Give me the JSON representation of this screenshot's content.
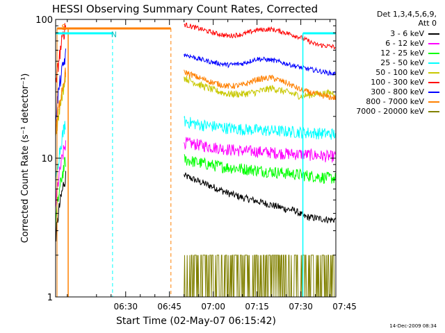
{
  "chart_data": {
    "type": "line",
    "title": "HESSI Observing Summary Count Rates, Corrected",
    "xlabel": "Start Time (02-May-07 06:15:42)",
    "ylabel": "Corrected Count Rate (s⁻¹ detector⁻¹)",
    "yscale": "log",
    "ylim": [
      1,
      100
    ],
    "xlim_minutes": [
      6.0,
      102.0
    ],
    "x_ticks": [
      {
        "m": 30,
        "label": "06:30"
      },
      {
        "m": 45,
        "label": "06:45"
      },
      {
        "m": 60,
        "label": "07:00"
      },
      {
        "m": 75,
        "label": "07:15"
      },
      {
        "m": 90,
        "label": "07:30"
      },
      {
        "m": 105,
        "label": "07:45"
      }
    ],
    "y_ticks": [
      {
        "v": 1,
        "label": "1"
      },
      {
        "v": 10,
        "label": "10"
      },
      {
        "v": 100,
        "label": "100"
      }
    ],
    "legend_header": [
      "Det 1,3,4,5,6,9,",
      "Att 0"
    ],
    "series": [
      {
        "name": "3 - 6 keV",
        "color": "#000000",
        "points": [
          [
            50,
            7.5
          ],
          [
            55,
            6.8
          ],
          [
            60,
            6.2
          ],
          [
            65,
            5.6
          ],
          [
            70,
            5.2
          ],
          [
            75,
            4.9
          ],
          [
            80,
            4.6
          ],
          [
            85,
            4.3
          ],
          [
            88,
            4.2
          ],
          [
            91,
            3.8
          ],
          [
            95,
            3.7
          ],
          [
            100,
            3.6
          ],
          [
            103,
            3.6
          ]
        ]
      },
      {
        "name": "6 - 12 keV",
        "color": "#ff00ff",
        "points": [
          [
            50,
            13
          ],
          [
            55,
            12.5
          ],
          [
            60,
            12
          ],
          [
            65,
            11.6
          ],
          [
            70,
            11.3
          ],
          [
            75,
            11.2
          ],
          [
            80,
            11.0
          ],
          [
            85,
            10.8
          ],
          [
            90,
            10.7
          ],
          [
            95,
            10.5
          ],
          [
            100,
            10.3
          ],
          [
            103,
            10.3
          ]
        ]
      },
      {
        "name": "12 - 25 keV",
        "color": "#00ff00",
        "points": [
          [
            50,
            9.8
          ],
          [
            55,
            9.3
          ],
          [
            60,
            8.9
          ],
          [
            65,
            8.6
          ],
          [
            70,
            8.4
          ],
          [
            75,
            8.2
          ],
          [
            80,
            8.0
          ],
          [
            85,
            7.8
          ],
          [
            90,
            7.6
          ],
          [
            95,
            7.4
          ],
          [
            100,
            7.2
          ],
          [
            103,
            7.2
          ]
        ]
      },
      {
        "name": "25 - 50 keV",
        "color": "#00ffff",
        "points": [
          [
            50,
            18.5
          ],
          [
            55,
            17.5
          ],
          [
            60,
            17
          ],
          [
            65,
            16.5
          ],
          [
            70,
            16.2
          ],
          [
            75,
            16
          ],
          [
            80,
            15.8
          ],
          [
            85,
            15.6
          ],
          [
            90,
            15.4
          ],
          [
            95,
            15.2
          ],
          [
            100,
            15.0
          ],
          [
            103,
            15.0
          ]
        ]
      },
      {
        "name": "50 - 100 keV",
        "color": "#c8c800",
        "points": [
          [
            50,
            38
          ],
          [
            55,
            34
          ],
          [
            60,
            31
          ],
          [
            65,
            29
          ],
          [
            70,
            29
          ],
          [
            75,
            30
          ],
          [
            80,
            32
          ],
          [
            85,
            30
          ],
          [
            90,
            28
          ],
          [
            95,
            29
          ],
          [
            100,
            29.5
          ],
          [
            103,
            29.5
          ]
        ]
      },
      {
        "name": "100 - 300 keV",
        "color": "#ff0000",
        "points": [
          [
            50,
            92
          ],
          [
            55,
            86
          ],
          [
            60,
            80
          ],
          [
            65,
            76
          ],
          [
            70,
            78
          ],
          [
            75,
            84
          ],
          [
            80,
            85
          ],
          [
            85,
            80
          ],
          [
            90,
            74
          ],
          [
            95,
            66
          ],
          [
            100,
            64
          ],
          [
            103,
            63
          ]
        ]
      },
      {
        "name": "300 - 800 keV",
        "color": "#0000ff",
        "points": [
          [
            50,
            56
          ],
          [
            55,
            52
          ],
          [
            60,
            49
          ],
          [
            65,
            47
          ],
          [
            70,
            48
          ],
          [
            75,
            52
          ],
          [
            80,
            51
          ],
          [
            85,
            48
          ],
          [
            90,
            45
          ],
          [
            95,
            43
          ],
          [
            100,
            41
          ],
          [
            103,
            40
          ]
        ]
      },
      {
        "name": "800 - 7000 keV",
        "color": "#ff8000",
        "points": [
          [
            50,
            42
          ],
          [
            55,
            38
          ],
          [
            60,
            35
          ],
          [
            65,
            33
          ],
          [
            70,
            33.5
          ],
          [
            75,
            37
          ],
          [
            80,
            38
          ],
          [
            85,
            35
          ],
          [
            90,
            31
          ],
          [
            95,
            29
          ],
          [
            100,
            27.5
          ],
          [
            103,
            27
          ]
        ]
      },
      {
        "name": "7000 - 20000 keV",
        "color": "#808000",
        "points": [
          [
            50,
            2.0
          ],
          [
            60,
            2.0
          ],
          [
            70,
            2.0
          ],
          [
            80,
            2.0
          ],
          [
            90,
            2.0
          ],
          [
            103,
            2.0
          ]
        ]
      }
    ],
    "annotations": [
      {
        "text": "S",
        "m": 8.0,
        "y": 88,
        "color": "#ff8000"
      },
      {
        "text": "N",
        "m": 25.0,
        "y": 78,
        "color": "#00c0c0"
      }
    ],
    "markers": {
      "saa_m": [
        6.5,
        10.3,
        45.5
      ],
      "night_m": [
        6.0,
        25.5,
        90.7,
        102.0
      ]
    },
    "timestamp": "14-Dec-2009 08:34"
  }
}
